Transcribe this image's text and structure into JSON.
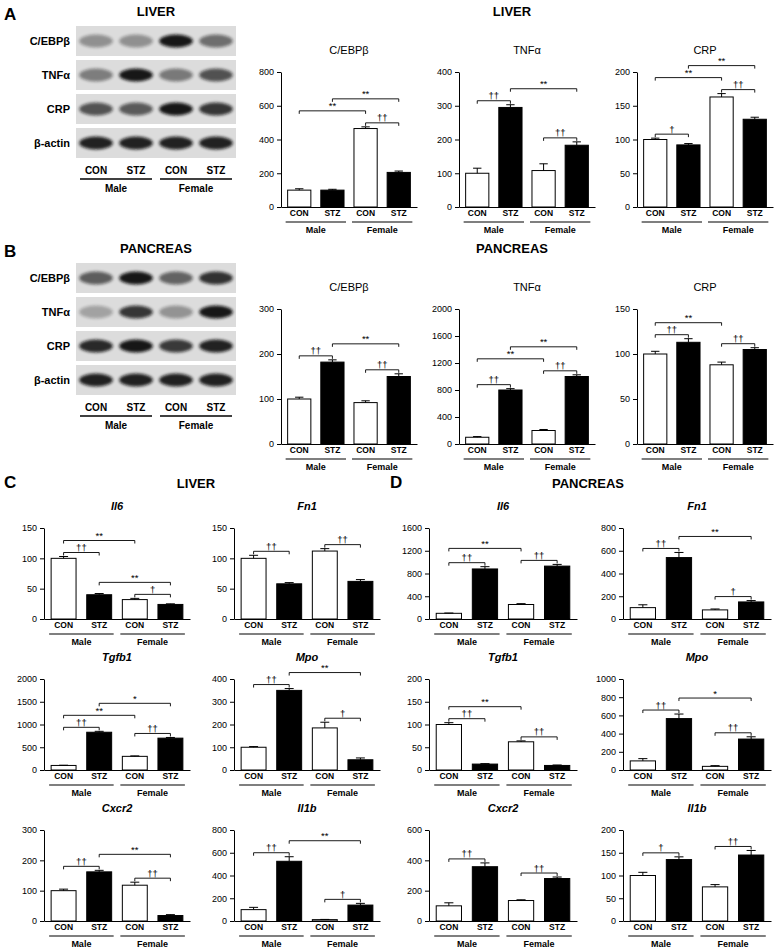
{
  "panels": [
    {
      "label": "A",
      "headings": [
        "LIVER",
        "LIVER"
      ]
    },
    {
      "label": "B",
      "headings": [
        "PANCREAS",
        "PANCREAS"
      ]
    },
    {
      "label": "C",
      "headings": [
        "LIVER"
      ]
    },
    {
      "label": "D",
      "headings": [
        "PANCREAS"
      ]
    }
  ],
  "blots": [
    {
      "type": "blot",
      "bands": [
        "C/EBPβ",
        "TNFα",
        "CRP",
        "β-actin"
      ],
      "lanes": [
        "CON",
        "STZ",
        "CON",
        "STZ"
      ],
      "groups": [
        "Male",
        "Female"
      ]
    },
    {
      "type": "blot",
      "bands": [
        "C/EBPβ",
        "TNFα",
        "CRP",
        "β-actin"
      ],
      "lanes": [
        "CON",
        "STZ",
        "CON",
        "STZ"
      ],
      "groups": [
        "Male",
        "Female"
      ]
    }
  ],
  "chart_data": [
    {
      "type": "bar",
      "title": "C/EBPβ",
      "categories": [
        "CON",
        "STZ",
        "CON",
        "STZ"
      ],
      "groups": [
        "Male",
        "Female"
      ],
      "values": [
        100,
        100,
        465,
        205
      ],
      "errors": [
        8,
        5,
        10,
        8
      ],
      "colors": [
        "#ffffff",
        "#000000",
        "#ffffff",
        "#000000"
      ],
      "ylim": [
        0,
        800
      ],
      "yticks": [
        0,
        200,
        400,
        600,
        800
      ],
      "annotations": [
        {
          "from": 2,
          "to": 3,
          "text": "††"
        },
        {
          "from": 0,
          "to": 2,
          "text": "**"
        },
        {
          "from": 1,
          "to": 3,
          "text": "**"
        }
      ]
    },
    {
      "type": "bar",
      "title": "TNFα",
      "categories": [
        "CON",
        "STZ",
        "CON",
        "STZ"
      ],
      "groups": [
        "Male",
        "Female"
      ],
      "values": [
        100,
        295,
        108,
        183
      ],
      "errors": [
        15,
        8,
        20,
        10
      ],
      "colors": [
        "#ffffff",
        "#000000",
        "#ffffff",
        "#000000"
      ],
      "ylim": [
        0,
        400
      ],
      "yticks": [
        0,
        100,
        200,
        300,
        400
      ],
      "annotations": [
        {
          "from": 0,
          "to": 1,
          "text": "††"
        },
        {
          "from": 2,
          "to": 3,
          "text": "††"
        },
        {
          "from": 1,
          "to": 3,
          "text": "**"
        }
      ]
    },
    {
      "type": "bar",
      "title": "CRP",
      "categories": [
        "CON",
        "STZ",
        "CON",
        "STZ"
      ],
      "groups": [
        "Male",
        "Female"
      ],
      "values": [
        100,
        92,
        163,
        130
      ],
      "errors": [
        2,
        2,
        5,
        3
      ],
      "colors": [
        "#ffffff",
        "#000000",
        "#ffffff",
        "#000000"
      ],
      "ylim": [
        0,
        200
      ],
      "yticks": [
        0,
        50,
        100,
        150,
        200
      ],
      "annotations": [
        {
          "from": 0,
          "to": 1,
          "text": "†"
        },
        {
          "from": 2,
          "to": 3,
          "text": "††"
        },
        {
          "from": 0,
          "to": 2,
          "text": "**"
        },
        {
          "from": 1,
          "to": 3,
          "text": "**"
        }
      ]
    },
    {
      "type": "bar",
      "title": "C/EBPβ",
      "categories": [
        "CON",
        "STZ",
        "CON",
        "STZ"
      ],
      "groups": [
        "Male",
        "Female"
      ],
      "values": [
        100,
        182,
        92,
        150
      ],
      "errors": [
        4,
        5,
        4,
        6
      ],
      "colors": [
        "#ffffff",
        "#000000",
        "#ffffff",
        "#000000"
      ],
      "ylim": [
        0,
        300
      ],
      "yticks": [
        0,
        100,
        200,
        300
      ],
      "annotations": [
        {
          "from": 0,
          "to": 1,
          "text": "††"
        },
        {
          "from": 2,
          "to": 3,
          "text": "††"
        },
        {
          "from": 1,
          "to": 3,
          "text": "**"
        }
      ]
    },
    {
      "type": "bar",
      "title": "TNFα",
      "categories": [
        "CON",
        "STZ",
        "CON",
        "STZ"
      ],
      "groups": [
        "Male",
        "Female"
      ],
      "values": [
        100,
        800,
        200,
        1000
      ],
      "errors": [
        10,
        20,
        15,
        25
      ],
      "colors": [
        "#ffffff",
        "#000000",
        "#ffffff",
        "#000000"
      ],
      "ylim": [
        0,
        2000
      ],
      "yticks": [
        0,
        400,
        800,
        1200,
        1600,
        2000
      ],
      "annotations": [
        {
          "from": 0,
          "to": 1,
          "text": "††"
        },
        {
          "from": 2,
          "to": 3,
          "text": "††"
        },
        {
          "from": 0,
          "to": 2,
          "text": "**"
        },
        {
          "from": 1,
          "to": 3,
          "text": "**"
        }
      ]
    },
    {
      "type": "bar",
      "title": "CRP",
      "categories": [
        "CON",
        "STZ",
        "CON",
        "STZ"
      ],
      "groups": [
        "Male",
        "Female"
      ],
      "values": [
        100,
        113,
        88,
        105
      ],
      "errors": [
        3,
        4,
        3,
        2
      ],
      "colors": [
        "#ffffff",
        "#000000",
        "#ffffff",
        "#000000"
      ],
      "ylim": [
        0,
        150
      ],
      "yticks": [
        0,
        50,
        100,
        150
      ],
      "annotations": [
        {
          "from": 0,
          "to": 1,
          "text": "††"
        },
        {
          "from": 2,
          "to": 3,
          "text": "††"
        },
        {
          "from": 0,
          "to": 2,
          "text": "**"
        }
      ]
    },
    {
      "type": "bar",
      "title": "Il6",
      "categories": [
        "CON",
        "STZ",
        "CON",
        "STZ"
      ],
      "groups": [
        "Male",
        "Female"
      ],
      "values": [
        100,
        40,
        32,
        24
      ],
      "errors": [
        3,
        2,
        2,
        1
      ],
      "colors": [
        "#ffffff",
        "#000000",
        "#ffffff",
        "#000000"
      ],
      "ylim": [
        0,
        150
      ],
      "yticks": [
        0,
        50,
        100,
        150
      ],
      "annotations": [
        {
          "from": 0,
          "to": 1,
          "text": "††"
        },
        {
          "from": 2,
          "to": 3,
          "text": "†"
        },
        {
          "from": 0,
          "to": 2,
          "text": "**"
        },
        {
          "from": 1,
          "to": 3,
          "text": "**"
        }
      ]
    },
    {
      "type": "bar",
      "title": "Fn1",
      "categories": [
        "CON",
        "STZ",
        "CON",
        "STZ"
      ],
      "groups": [
        "Male",
        "Female"
      ],
      "values": [
        100,
        58,
        112,
        62
      ],
      "errors": [
        5,
        2,
        4,
        3
      ],
      "colors": [
        "#ffffff",
        "#000000",
        "#ffffff",
        "#000000"
      ],
      "ylim": [
        0,
        150
      ],
      "yticks": [
        0,
        50,
        100,
        150
      ],
      "annotations": [
        {
          "from": 0,
          "to": 1,
          "text": "††"
        },
        {
          "from": 2,
          "to": 3,
          "text": "††"
        }
      ]
    },
    {
      "type": "bar",
      "title": "Tgfb1",
      "categories": [
        "CON",
        "STZ",
        "CON",
        "STZ"
      ],
      "groups": [
        "Male",
        "Female"
      ],
      "values": [
        100,
        830,
        300,
        700
      ],
      "errors": [
        5,
        20,
        10,
        15
      ],
      "colors": [
        "#ffffff",
        "#000000",
        "#ffffff",
        "#000000"
      ],
      "ylim": [
        0,
        2000
      ],
      "yticks": [
        0,
        500,
        1000,
        1500,
        2000
      ],
      "annotations": [
        {
          "from": 0,
          "to": 1,
          "text": "††"
        },
        {
          "from": 2,
          "to": 3,
          "text": "††"
        },
        {
          "from": 0,
          "to": 2,
          "text": "**"
        },
        {
          "from": 1,
          "to": 3,
          "text": "*"
        }
      ]
    },
    {
      "type": "bar",
      "title": "Mpo",
      "categories": [
        "CON",
        "STZ",
        "CON",
        "STZ"
      ],
      "groups": [
        "Male",
        "Female"
      ],
      "values": [
        100,
        350,
        185,
        45
      ],
      "errors": [
        3,
        8,
        25,
        8
      ],
      "colors": [
        "#ffffff",
        "#000000",
        "#ffffff",
        "#000000"
      ],
      "ylim": [
        0,
        400
      ],
      "yticks": [
        0,
        100,
        200,
        300,
        400
      ],
      "annotations": [
        {
          "from": 0,
          "to": 1,
          "text": "††"
        },
        {
          "from": 2,
          "to": 3,
          "text": "†"
        },
        {
          "from": 1,
          "to": 3,
          "text": "**"
        }
      ]
    },
    {
      "type": "bar",
      "title": "Cxcr2",
      "categories": [
        "CON",
        "STZ",
        "CON",
        "STZ"
      ],
      "groups": [
        "Male",
        "Female"
      ],
      "values": [
        100,
        162,
        118,
        18
      ],
      "errors": [
        5,
        5,
        10,
        3
      ],
      "colors": [
        "#ffffff",
        "#000000",
        "#ffffff",
        "#000000"
      ],
      "ylim": [
        0,
        300
      ],
      "yticks": [
        0,
        100,
        200,
        300
      ],
      "annotations": [
        {
          "from": 0,
          "to": 1,
          "text": "††"
        },
        {
          "from": 2,
          "to": 3,
          "text": "††"
        },
        {
          "from": 1,
          "to": 3,
          "text": "**"
        }
      ]
    },
    {
      "type": "bar",
      "title": "Il1b",
      "categories": [
        "CON",
        "STZ",
        "CON",
        "STZ"
      ],
      "groups": [
        "Male",
        "Female"
      ],
      "values": [
        100,
        525,
        12,
        140
      ],
      "errors": [
        20,
        40,
        2,
        15
      ],
      "colors": [
        "#ffffff",
        "#000000",
        "#ffffff",
        "#000000"
      ],
      "ylim": [
        0,
        800
      ],
      "yticks": [
        0,
        200,
        400,
        600,
        800
      ],
      "annotations": [
        {
          "from": 0,
          "to": 1,
          "text": "††"
        },
        {
          "from": 2,
          "to": 3,
          "text": "†"
        },
        {
          "from": 1,
          "to": 3,
          "text": "**"
        }
      ]
    },
    {
      "type": "bar",
      "title": "Il6",
      "categories": [
        "CON",
        "STZ",
        "CON",
        "STZ"
      ],
      "groups": [
        "Male",
        "Female"
      ],
      "values": [
        100,
        880,
        255,
        930
      ],
      "errors": [
        5,
        40,
        15,
        30
      ],
      "colors": [
        "#ffffff",
        "#000000",
        "#ffffff",
        "#000000"
      ],
      "ylim": [
        0,
        1600
      ],
      "yticks": [
        0,
        400,
        800,
        1200,
        1600
      ],
      "annotations": [
        {
          "from": 0,
          "to": 1,
          "text": "††"
        },
        {
          "from": 2,
          "to": 3,
          "text": "††"
        },
        {
          "from": 0,
          "to": 2,
          "text": "**"
        }
      ]
    },
    {
      "type": "bar",
      "title": "Fn1",
      "categories": [
        "CON",
        "STZ",
        "CON",
        "STZ"
      ],
      "groups": [
        "Male",
        "Female"
      ],
      "values": [
        100,
        540,
        80,
        150
      ],
      "errors": [
        25,
        45,
        8,
        12
      ],
      "colors": [
        "#ffffff",
        "#000000",
        "#ffffff",
        "#000000"
      ],
      "ylim": [
        0,
        800
      ],
      "yticks": [
        0,
        200,
        400,
        600,
        800
      ],
      "annotations": [
        {
          "from": 0,
          "to": 1,
          "text": "††"
        },
        {
          "from": 2,
          "to": 3,
          "text": "†"
        },
        {
          "from": 1,
          "to": 3,
          "text": "**"
        }
      ]
    },
    {
      "type": "bar",
      "title": "Tgfb1",
      "categories": [
        "CON",
        "STZ",
        "CON",
        "STZ"
      ],
      "groups": [
        "Male",
        "Female"
      ],
      "values": [
        100,
        13,
        62,
        10
      ],
      "errors": [
        4,
        1,
        2,
        1
      ],
      "colors": [
        "#ffffff",
        "#000000",
        "#ffffff",
        "#000000"
      ],
      "ylim": [
        0,
        200
      ],
      "yticks": [
        0,
        50,
        100,
        150,
        200
      ],
      "annotations": [
        {
          "from": 0,
          "to": 1,
          "text": "††"
        },
        {
          "from": 2,
          "to": 3,
          "text": "††"
        },
        {
          "from": 0,
          "to": 2,
          "text": "**"
        }
      ]
    },
    {
      "type": "bar",
      "title": "Mpo",
      "categories": [
        "CON",
        "STZ",
        "CON",
        "STZ"
      ],
      "groups": [
        "Male",
        "Female"
      ],
      "values": [
        100,
        565,
        40,
        340
      ],
      "errors": [
        25,
        50,
        8,
        25
      ],
      "colors": [
        "#ffffff",
        "#000000",
        "#ffffff",
        "#000000"
      ],
      "ylim": [
        0,
        1000
      ],
      "yticks": [
        0,
        200,
        400,
        600,
        800,
        1000
      ],
      "annotations": [
        {
          "from": 0,
          "to": 1,
          "text": "††"
        },
        {
          "from": 2,
          "to": 3,
          "text": "††"
        },
        {
          "from": 1,
          "to": 3,
          "text": "*"
        }
      ]
    },
    {
      "type": "bar",
      "title": "Cxcr2",
      "categories": [
        "CON",
        "STZ",
        "CON",
        "STZ"
      ],
      "groups": [
        "Male",
        "Female"
      ],
      "values": [
        100,
        358,
        135,
        280
      ],
      "errors": [
        20,
        25,
        5,
        10
      ],
      "colors": [
        "#ffffff",
        "#000000",
        "#ffffff",
        "#000000"
      ],
      "ylim": [
        0,
        600
      ],
      "yticks": [
        0,
        200,
        400,
        600
      ],
      "annotations": [
        {
          "from": 0,
          "to": 1,
          "text": "††"
        },
        {
          "from": 2,
          "to": 3,
          "text": "††"
        }
      ]
    },
    {
      "type": "bar",
      "title": "Il1b",
      "categories": [
        "CON",
        "STZ",
        "CON",
        "STZ"
      ],
      "groups": [
        "Male",
        "Female"
      ],
      "values": [
        100,
        135,
        75,
        145
      ],
      "errors": [
        7,
        6,
        5,
        10
      ],
      "colors": [
        "#ffffff",
        "#000000",
        "#ffffff",
        "#000000"
      ],
      "ylim": [
        0,
        200
      ],
      "yticks": [
        0,
        50,
        100,
        150,
        200
      ],
      "annotations": [
        {
          "from": 0,
          "to": 1,
          "text": "†"
        },
        {
          "from": 2,
          "to": 3,
          "text": "††"
        }
      ]
    }
  ]
}
